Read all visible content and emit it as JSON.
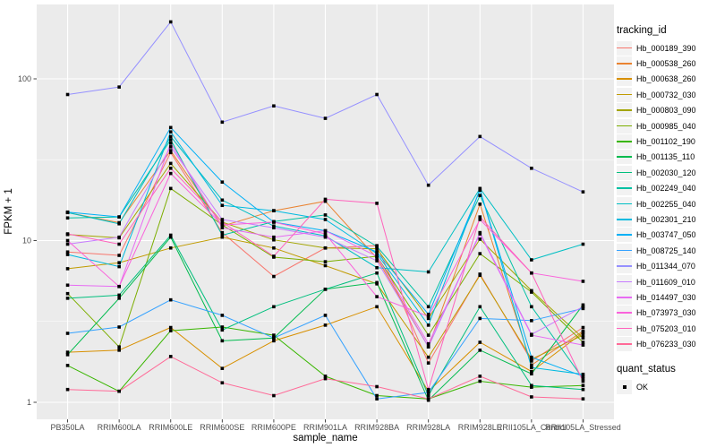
{
  "figure": {
    "background": "#FFFFFF",
    "panel_background": "#EBEBEB",
    "grid_color": "#FFFFFF",
    "tick_text_color": "#4D4D4D",
    "legend_key_fill": "#F2F2F2"
  },
  "legend": {
    "tracking": {
      "title": "tracking_id"
    },
    "quant": {
      "title": "quant_status",
      "items": [
        {
          "label": "OK",
          "marker": "black-square"
        }
      ]
    }
  },
  "chart_data": {
    "type": "line",
    "title": "",
    "xlabel": "sample_name",
    "ylabel": "FPKM + 1",
    "y_scale": "log10",
    "ylim": [
      1,
      250
    ],
    "y_major_ticks": [
      1,
      10,
      100
    ],
    "y_minor_ticks": [
      3.1623,
      31.623
    ],
    "grid": "on",
    "legend_position": "right",
    "point_marker": "filled-black-square",
    "categories": [
      "PB350LA",
      "RRIM600LA",
      "RRIM600LE",
      "RRIM600SE",
      "RRIM600PE",
      "RRIM901LA",
      "RRIM928BA",
      "RRIM928LA",
      "RRIM928LE",
      "RRII105LA_Control",
      "RRII105LA_Stressed"
    ],
    "series": [
      {
        "name": "Hb_000189_390",
        "color": "#F8766D",
        "values": [
          8.5,
          8.1,
          35,
          11.2,
          6.0,
          9.0,
          9.3,
          1.75,
          6.2,
          1.8,
          2.9
        ]
      },
      {
        "name": "Hb_000538_260",
        "color": "#EA8331",
        "values": [
          14.9,
          12.9,
          36,
          12.3,
          15.3,
          17.5,
          7.8,
          2.2,
          16.8,
          1.7,
          2.75
        ]
      },
      {
        "name": "Hb_000638_260",
        "color": "#D89000",
        "values": [
          2.04,
          2.1,
          2.9,
          1.62,
          2.4,
          3.0,
          3.9,
          1.17,
          2.35,
          1.55,
          2.7
        ]
      },
      {
        "name": "Hb_000732_030",
        "color": "#C09B00",
        "values": [
          6.7,
          7.3,
          9.0,
          10.5,
          9.0,
          7.0,
          5.4,
          1.9,
          6.1,
          1.85,
          2.6
        ]
      },
      {
        "name": "Hb_000803_090",
        "color": "#A3A500",
        "values": [
          10.9,
          10.4,
          30,
          13.0,
          10.1,
          9.0,
          8.9,
          3.3,
          10.2,
          4.9,
          2.5
        ]
      },
      {
        "name": "Hb_000985_040",
        "color": "#7CAE00",
        "values": [
          4.7,
          2.2,
          21,
          12.5,
          7.9,
          7.4,
          8.0,
          2.6,
          8.3,
          4.8,
          2.35
        ]
      },
      {
        "name": "Hb_001102_190",
        "color": "#39B600",
        "values": [
          1.69,
          1.17,
          2.77,
          2.92,
          2.6,
          1.45,
          1.1,
          1.05,
          1.35,
          1.24,
          1.27
        ]
      },
      {
        "name": "Hb_001135_110",
        "color": "#00BB4E",
        "values": [
          1.97,
          4.4,
          10.5,
          2.4,
          2.5,
          5.0,
          5.5,
          1.03,
          2.1,
          1.5,
          4.0
        ]
      },
      {
        "name": "Hb_002030_120",
        "color": "#00BF7D",
        "values": [
          4.4,
          4.6,
          10.8,
          2.8,
          3.9,
          5.0,
          6.3,
          1.1,
          3.9,
          1.27,
          1.2
        ]
      },
      {
        "name": "Hb_002249_040",
        "color": "#00C1A3",
        "values": [
          13.8,
          14.0,
          42,
          10.8,
          13.1,
          14.4,
          9.2,
          3.9,
          19,
          3.9,
          1.4
        ]
      },
      {
        "name": "Hb_002255_040",
        "color": "#00BFC4",
        "values": [
          14.9,
          12.7,
          44,
          17.8,
          12.3,
          10.7,
          6.8,
          6.4,
          21,
          7.6,
          9.5
        ]
      },
      {
        "name": "Hb_002301_210",
        "color": "#00BAE0",
        "values": [
          8.2,
          6.9,
          47,
          16.5,
          15.3,
          13.5,
          8.3,
          3.0,
          20.8,
          1.64,
          1.49
        ]
      },
      {
        "name": "Hb_003747_050",
        "color": "#00B0F6",
        "values": [
          15.0,
          14.0,
          50,
          23,
          13.0,
          11.5,
          8.5,
          3.5,
          20.5,
          1.9,
          1.45
        ]
      },
      {
        "name": "Hb_008725_140",
        "color": "#35A2FF",
        "values": [
          2.67,
          2.92,
          4.3,
          3.45,
          2.5,
          3.45,
          1.05,
          1.15,
          3.3,
          3.2,
          3.8
        ]
      },
      {
        "name": "Hb_011344_070",
        "color": "#9590FF",
        "values": [
          80,
          89,
          225,
          54,
          68,
          57,
          80,
          22,
          44,
          28,
          20
        ]
      },
      {
        "name": "Hb_011609_010",
        "color": "#C77CFF",
        "values": [
          9.5,
          10.5,
          38,
          13.5,
          12.0,
          10.5,
          7.5,
          2.2,
          11.2,
          2.63,
          3.9
        ]
      },
      {
        "name": "Hb_014497_030",
        "color": "#E76BF3",
        "values": [
          5.3,
          5.2,
          40,
          12.0,
          10.5,
          11.5,
          8.0,
          2.3,
          11.0,
          2.6,
          2.26
        ]
      },
      {
        "name": "Hb_073973_030",
        "color": "#FA62DB",
        "values": [
          10.0,
          5.2,
          26,
          12.5,
          13.0,
          11.0,
          4.5,
          3.4,
          13.5,
          6.3,
          5.6
        ]
      },
      {
        "name": "Hb_075203_010",
        "color": "#FF62BC",
        "values": [
          11.0,
          9.5,
          28,
          13.0,
          8.0,
          18.0,
          17.0,
          1.2,
          14.0,
          6.3,
          1.35
        ]
      },
      {
        "name": "Hb_076233_030",
        "color": "#FF6A98",
        "values": [
          1.2,
          1.17,
          1.92,
          1.32,
          1.1,
          1.4,
          1.25,
          1.05,
          1.45,
          1.08,
          1.05
        ]
      }
    ]
  }
}
